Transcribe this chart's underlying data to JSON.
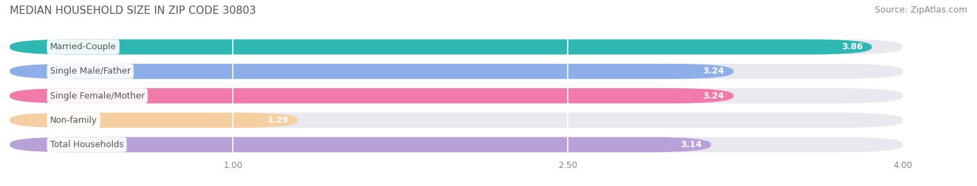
{
  "title": "MEDIAN HOUSEHOLD SIZE IN ZIP CODE 30803",
  "source": "Source: ZipAtlas.com",
  "categories": [
    "Married-Couple",
    "Single Male/Father",
    "Single Female/Mother",
    "Non-family",
    "Total Households"
  ],
  "values": [
    3.86,
    3.24,
    3.24,
    1.29,
    3.14
  ],
  "bar_colors": [
    "#2db8b4",
    "#8eaee8",
    "#f07aaa",
    "#f5cfa0",
    "#b8a0d8"
  ],
  "xlim_data": [
    0.0,
    4.2
  ],
  "xlim_display": [
    0.0,
    4.0
  ],
  "xticks": [
    1.0,
    2.5,
    4.0
  ],
  "xtick_labels": [
    "1.00",
    "2.50",
    "4.00"
  ],
  "background_color": "#ffffff",
  "bar_bg_color": "#e8e8ee",
  "title_fontsize": 11,
  "source_fontsize": 9,
  "label_fontsize": 9,
  "value_fontsize": 9,
  "tick_fontsize": 9,
  "label_text_color": "#555555",
  "value_text_color": "#ffffff",
  "bar_height": 0.62
}
